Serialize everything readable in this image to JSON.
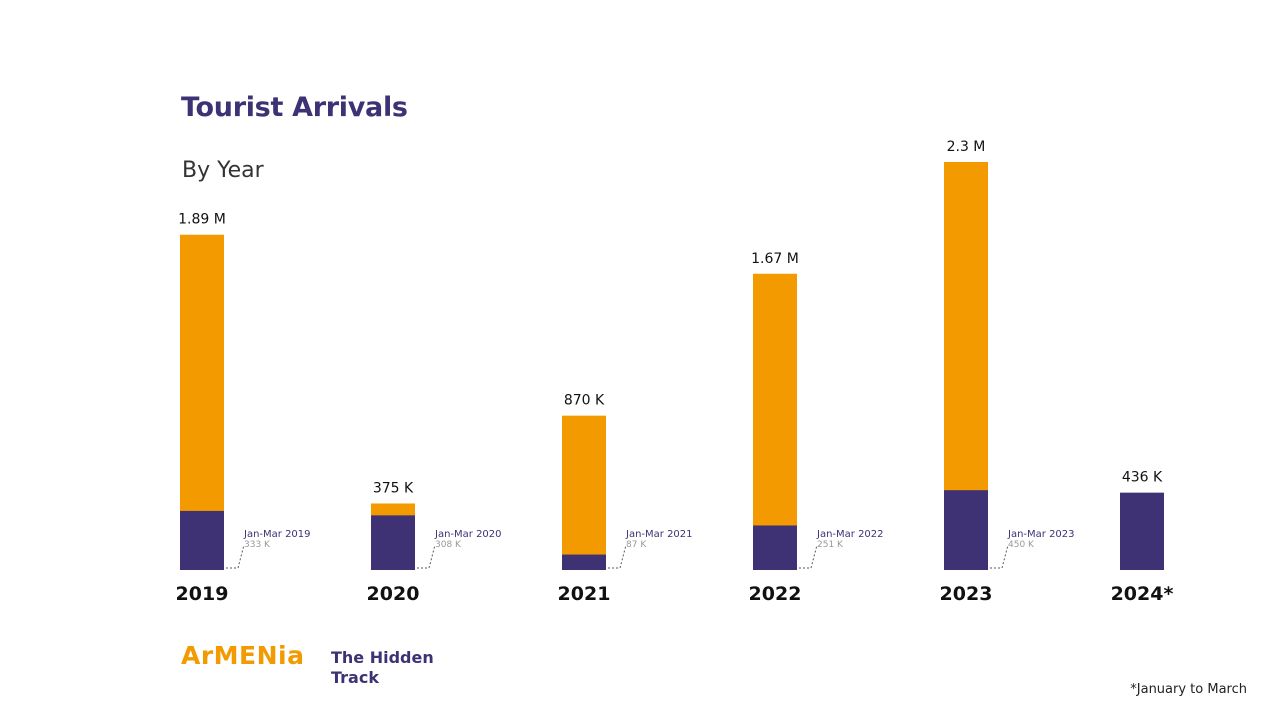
{
  "title": "Tourist Arrivals",
  "subtitle": "By Year",
  "footnote": "*January to March",
  "logo": {
    "wordmark": "ArMENia",
    "tagline": "The Hidden Track"
  },
  "colors": {
    "annual": "#f29a00",
    "q1": "#3e3275",
    "title": "#3e3275",
    "annotation": "#3e3275",
    "annotation_value": "#999999"
  },
  "chart_data": {
    "type": "bar",
    "title": "Tourist Arrivals",
    "subtitle": "By Year",
    "categories": [
      "2019",
      "2020",
      "2021",
      "2022",
      "2023",
      "2024*"
    ],
    "series": [
      {
        "values": [
          1890000,
          375000,
          870000,
          1670000,
          2300000,
          null
        ]
      },
      {
        "values": [
          333000,
          308000,
          87000,
          251000,
          450000,
          436000
        ]
      }
    ],
    "total_labels": [
      "1.89 M",
      "375 K",
      "870 K",
      "1.67 M",
      "2.3 M",
      "436 K"
    ],
    "q1_annotations": [
      {
        "label": "Jan-Mar 2019",
        "value": "333 K"
      },
      {
        "label": "Jan-Mar 2020",
        "value": "308 K"
      },
      {
        "label": "Jan-Mar 2021",
        "value": "87 K"
      },
      {
        "label": "Jan-Mar 2022",
        "value": "251 K"
      },
      {
        "label": "Jan-Mar 2023",
        "value": "450 K"
      },
      null
    ],
    "ylim": [
      0,
      2300000
    ],
    "stacked": "overlay",
    "grid": false,
    "legend": "none"
  }
}
